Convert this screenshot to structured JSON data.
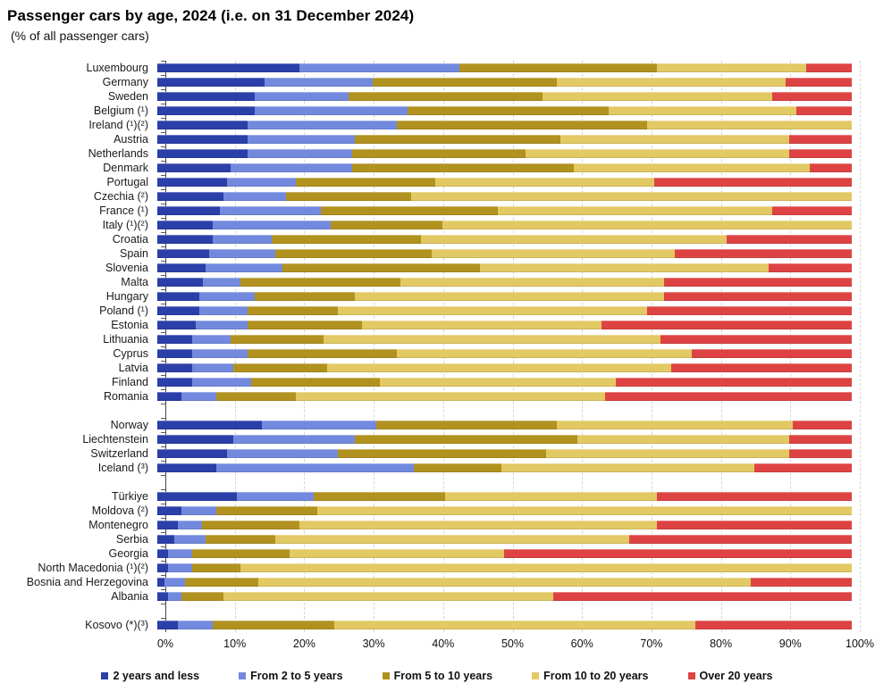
{
  "title": "Passenger cars by age, 2024 (i.e. on 31 December 2024)",
  "subtitle": "(% of all passenger cars)",
  "colors": {
    "axis_line": "#4a4a4a",
    "gridline": "#d4d4d4",
    "text": "#111111"
  },
  "chart_data": {
    "type": "bar",
    "orientation": "horizontal",
    "stacked": true,
    "unit": "%",
    "xlim": [
      0,
      100
    ],
    "x_ticks": [
      "0%",
      "10%",
      "20%",
      "30%",
      "40%",
      "50%",
      "60%",
      "70%",
      "80%",
      "90%",
      "100%"
    ],
    "grid": "vertical-dashed",
    "legend_position": "bottom",
    "series_names": [
      "2 years and less",
      "From 2 to 5 years",
      "From 5 to 10 years",
      "From 10 to 20 years",
      "Over 20 years"
    ],
    "series_colors": [
      "#2b3fa9",
      "#7289de",
      "#b1921f",
      "#e2c963",
      "#de4343"
    ],
    "groups": [
      {
        "name": "eu-members",
        "rows": [
          {
            "label": "Luxembourg",
            "values": [
              20.5,
              23.0,
              28.5,
              21.5,
              6.5
            ]
          },
          {
            "label": "Germany",
            "values": [
              15.5,
              15.5,
              26.5,
              33.0,
              9.5
            ]
          },
          {
            "label": "Sweden",
            "values": [
              14.0,
              13.5,
              28.0,
              33.0,
              11.5
            ]
          },
          {
            "label": "Belgium (¹)",
            "values": [
              14.0,
              22.0,
              29.0,
              27.0,
              8.0
            ]
          },
          {
            "label": "Ireland (¹)(²)",
            "values": [
              13.0,
              21.5,
              36.0,
              29.5,
              0
            ]
          },
          {
            "label": "Austria",
            "values": [
              13.0,
              15.5,
              29.5,
              33.0,
              9.0
            ]
          },
          {
            "label": "Netherlands",
            "values": [
              13.0,
              15.0,
              25.0,
              38.0,
              9.0
            ]
          },
          {
            "label": "Denmark",
            "values": [
              10.5,
              17.5,
              32.0,
              34.0,
              6.0
            ]
          },
          {
            "label": "Portugal",
            "values": [
              10.0,
              10.0,
              20.0,
              31.5,
              28.5
            ]
          },
          {
            "label": "Czechia (²)",
            "values": [
              9.5,
              9.0,
              18.0,
              63.5,
              0
            ]
          },
          {
            "label": "France (¹)",
            "values": [
              9.0,
              14.5,
              25.5,
              39.5,
              11.5
            ]
          },
          {
            "label": "Italy (¹)(²)",
            "values": [
              8.0,
              17.0,
              16.0,
              59.0,
              0
            ]
          },
          {
            "label": "Croatia",
            "values": [
              8.0,
              8.5,
              21.5,
              44.0,
              18.0
            ]
          },
          {
            "label": "Spain",
            "values": [
              7.5,
              9.5,
              22.5,
              35.0,
              25.5
            ]
          },
          {
            "label": "Slovenia",
            "values": [
              7.0,
              11.0,
              28.5,
              41.5,
              12.0
            ]
          },
          {
            "label": "Malta",
            "values": [
              6.5,
              5.5,
              23.0,
              38.0,
              27.0
            ]
          },
          {
            "label": "Hungary",
            "values": [
              6.0,
              8.0,
              14.5,
              44.5,
              27.0
            ]
          },
          {
            "label": "Poland (¹)",
            "values": [
              6.0,
              7.0,
              13.0,
              44.5,
              29.5
            ]
          },
          {
            "label": "Estonia",
            "values": [
              5.5,
              7.5,
              16.5,
              34.5,
              36.0
            ]
          },
          {
            "label": "Lithuania",
            "values": [
              5.0,
              5.5,
              13.5,
              48.5,
              27.5
            ]
          },
          {
            "label": "Cyprus",
            "values": [
              5.0,
              8.0,
              21.5,
              42.5,
              23.0
            ]
          },
          {
            "label": "Latvia",
            "values": [
              5.0,
              6.0,
              13.5,
              49.5,
              26.0
            ]
          },
          {
            "label": "Finland",
            "values": [
              5.0,
              8.5,
              18.5,
              34.0,
              34.0
            ]
          },
          {
            "label": "Romania",
            "values": [
              3.5,
              5.0,
              11.5,
              44.5,
              35.5
            ]
          }
        ]
      },
      {
        "name": "efta",
        "rows": [
          {
            "label": "Norway",
            "values": [
              15.0,
              16.5,
              26.0,
              34.0,
              8.5
            ]
          },
          {
            "label": "Liechtenstein",
            "values": [
              11.0,
              17.5,
              32.0,
              30.5,
              9.0
            ]
          },
          {
            "label": "Switzerland",
            "values": [
              10.0,
              16.0,
              30.0,
              35.0,
              9.0
            ]
          },
          {
            "label": "Iceland (³)",
            "values": [
              8.5,
              28.5,
              12.5,
              36.5,
              14.0
            ]
          }
        ]
      },
      {
        "name": "other-europe",
        "rows": [
          {
            "label": "Türkiye",
            "values": [
              11.5,
              11.0,
              19.0,
              30.5,
              28.0
            ]
          },
          {
            "label": "Moldova (²)",
            "values": [
              3.5,
              5.0,
              14.5,
              77.0,
              0
            ]
          },
          {
            "label": "Montenegro",
            "values": [
              3.0,
              3.5,
              14.0,
              51.5,
              28.0
            ]
          },
          {
            "label": "Serbia",
            "values": [
              2.5,
              4.5,
              10.0,
              51.0,
              32.0
            ]
          },
          {
            "label": "Georgia",
            "values": [
              1.5,
              3.5,
              14.0,
              31.0,
              50.0
            ]
          },
          {
            "label": "North Macedonia (¹)(²)",
            "values": [
              1.5,
              3.5,
              7.0,
              88.0,
              0
            ]
          },
          {
            "label": "Bosnia and Herzegovina",
            "values": [
              1.0,
              3.0,
              10.5,
              71.0,
              14.5
            ]
          },
          {
            "label": "Albania",
            "values": [
              1.5,
              2.0,
              6.0,
              47.5,
              43.0
            ]
          }
        ]
      },
      {
        "name": "kosovo",
        "rows": [
          {
            "label": "Kosovo (*)(³)",
            "values": [
              3.0,
              5.0,
              17.5,
              52.0,
              22.5
            ]
          }
        ]
      }
    ]
  }
}
